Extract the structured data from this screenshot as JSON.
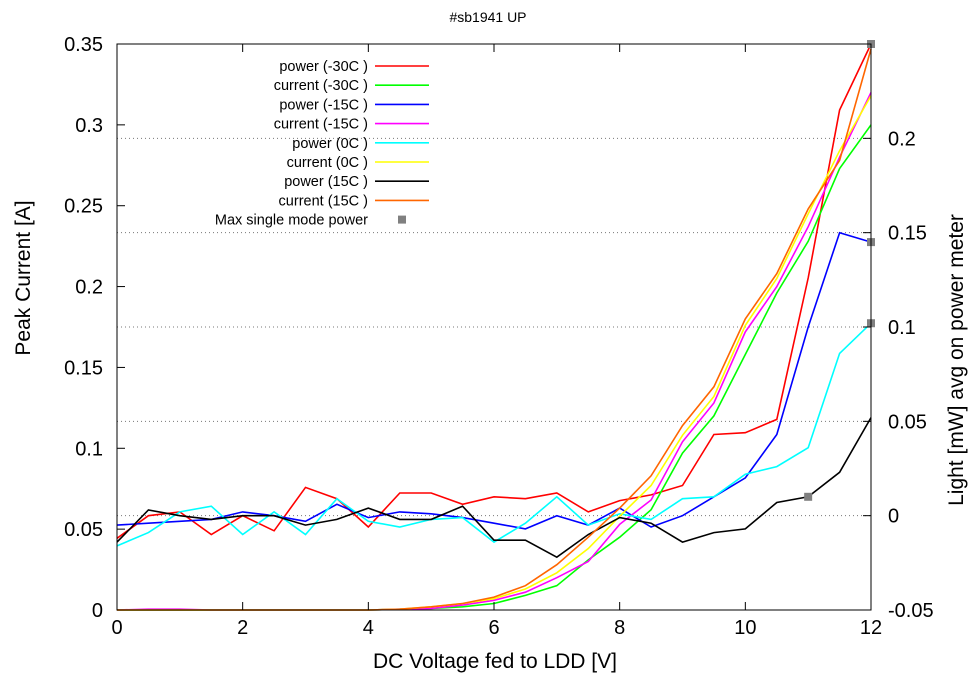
{
  "chart_data": {
    "type": "line",
    "title": "#sb1941 UP",
    "xlabel": "DC Voltage fed to LDD [V]",
    "ylabel": "Peak Current [A]",
    "y2label": "Light [mW] avg on power meter",
    "xlim": [
      0,
      12
    ],
    "ylim": [
      0,
      0.35
    ],
    "y2lim": [
      -0.05,
      0.25
    ],
    "xticks": [
      0,
      2,
      4,
      6,
      8,
      10,
      12
    ],
    "xtick_labels": [
      "0",
      "2",
      "4",
      "6",
      "8",
      "10",
      "12"
    ],
    "yticks": [
      0,
      0.05,
      0.1,
      0.15,
      0.2,
      0.25,
      0.3,
      0.35
    ],
    "ytick_labels": [
      "0",
      "0.05",
      "0.1",
      "0.15",
      "0.2",
      "0.25",
      "0.3",
      "0.35"
    ],
    "y2ticks": [
      -0.05,
      0,
      0.05,
      0.1,
      0.15,
      0.2
    ],
    "y2tick_labels": [
      "-0.05",
      "0",
      "0.05",
      "0.1",
      "0.15",
      "0.2"
    ],
    "grid": "dotted, right axis only",
    "legend_position": "top-left",
    "x": [
      0,
      0.5,
      1,
      1.5,
      2,
      2.5,
      3,
      3.5,
      4,
      4.5,
      5,
      5.5,
      6,
      6.5,
      7,
      7.5,
      8,
      8.5,
      9,
      9.5,
      10,
      10.5,
      11,
      11.5,
      12
    ],
    "series": [
      {
        "name": "power (-30C )",
        "axis": "y2",
        "color": "#ff0000",
        "values": [
          -0.012,
          0.0,
          0.002,
          -0.01,
          0.0,
          -0.008,
          0.015,
          0.009,
          -0.006,
          0.012,
          0.012,
          0.006,
          0.01,
          0.009,
          0.012,
          0.002,
          0.008,
          0.011,
          0.016,
          0.043,
          0.044,
          0.051,
          0.126,
          0.215,
          0.25
        ]
      },
      {
        "name": "current (-30C )",
        "axis": "y1",
        "color": "#00ff00",
        "values": [
          0,
          0,
          0,
          0,
          0,
          0,
          0,
          0,
          0,
          0.0005,
          0.001,
          0.002,
          0.004,
          0.009,
          0.015,
          0.031,
          0.045,
          0.062,
          0.097,
          0.12,
          0.158,
          0.196,
          0.228,
          0.273,
          0.3
        ]
      },
      {
        "name": "power (-15C )",
        "axis": "y2",
        "color": "#0000ff",
        "values": [
          -0.005,
          -0.004,
          -0.003,
          -0.002,
          0.002,
          0.0,
          -0.003,
          0.006,
          -0.001,
          0.002,
          0.001,
          -0.001,
          -0.004,
          -0.007,
          0.0,
          -0.005,
          0.004,
          -0.006,
          0.0,
          0.01,
          0.02,
          0.043,
          0.1,
          0.15,
          0.145
        ]
      },
      {
        "name": "current (-15C )",
        "axis": "y1",
        "color": "#ff00ff",
        "values": [
          0,
          0.0005,
          0.0005,
          0,
          0,
          0,
          0,
          0,
          0,
          0.0005,
          0.001,
          0.003,
          0.006,
          0.011,
          0.02,
          0.03,
          0.053,
          0.068,
          0.104,
          0.128,
          0.172,
          0.2,
          0.237,
          0.28,
          0.32
        ]
      },
      {
        "name": "power (0C )",
        "axis": "y2",
        "color": "#00ffff",
        "values": [
          -0.016,
          -0.009,
          0.002,
          0.005,
          -0.01,
          0.002,
          -0.01,
          0.009,
          -0.003,
          -0.006,
          -0.002,
          -0.001,
          -0.014,
          -0.004,
          0.01,
          -0.005,
          0.001,
          -0.002,
          0.009,
          0.01,
          0.022,
          0.026,
          0.036,
          0.086,
          0.102
        ]
      },
      {
        "name": "current (0C )",
        "axis": "y1",
        "color": "#ffff00",
        "values": [
          0,
          0,
          0,
          0,
          0,
          0,
          0,
          0,
          0,
          0.0005,
          0.002,
          0.004,
          0.007,
          0.013,
          0.023,
          0.038,
          0.058,
          0.077,
          0.108,
          0.132,
          0.176,
          0.205,
          0.245,
          0.284,
          0.318
        ]
      },
      {
        "name": "power (15C )",
        "axis": "y2",
        "color": "#000000",
        "values": [
          -0.014,
          0.003,
          0.0,
          -0.002,
          0.0,
          0.0,
          -0.005,
          -0.002,
          0.004,
          -0.002,
          -0.002,
          0.005,
          -0.013,
          -0.013,
          -0.022,
          -0.01,
          -0.001,
          -0.004,
          -0.014,
          -0.009,
          -0.007,
          0.007,
          0.01,
          0.023,
          0.052
        ]
      },
      {
        "name": "current (15C )",
        "axis": "y1",
        "color": "#ff6600",
        "values": [
          0,
          0,
          0,
          0,
          0,
          0,
          0,
          0,
          0,
          0.0005,
          0.002,
          0.004,
          0.008,
          0.015,
          0.028,
          0.045,
          0.063,
          0.083,
          0.114,
          0.138,
          0.18,
          0.208,
          0.248,
          0.278,
          0.347
        ]
      },
      {
        "name": "Max single mode power",
        "axis": "y2",
        "color": "#808080",
        "kind": "points",
        "points": [
          {
            "x": 11,
            "y": 0.01
          },
          {
            "x": 12,
            "y": 0.25
          },
          {
            "x": 12,
            "y": 0.145
          },
          {
            "x": 12,
            "y": 0.102
          }
        ]
      }
    ]
  }
}
